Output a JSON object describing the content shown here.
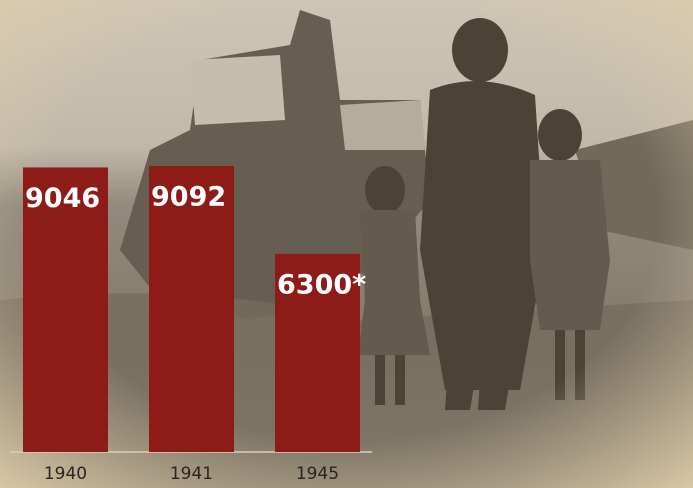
{
  "chart_data": {
    "type": "bar",
    "categories": [
      "1940",
      "1941",
      "1945"
    ],
    "values": [
      9046,
      9092,
      6300
    ],
    "value_labels": [
      "9046",
      "9092",
      "6300*"
    ],
    "color": "#8d1b17"
  }
}
